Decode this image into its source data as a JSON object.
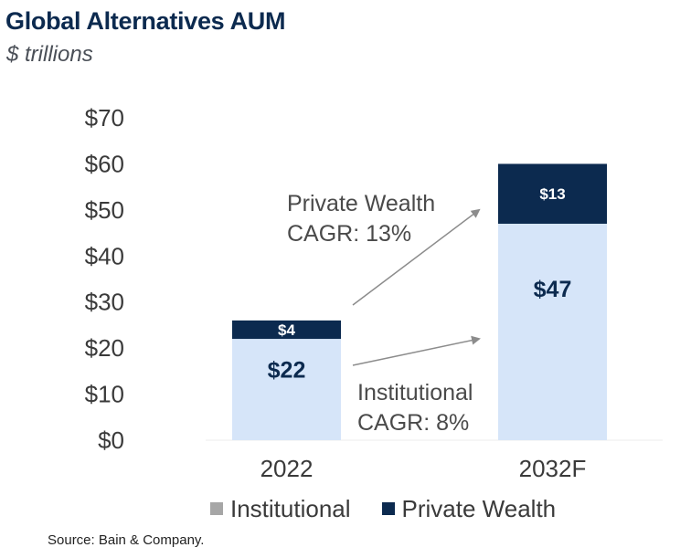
{
  "title": "Global Alternatives AUM",
  "subtitle": "$ trillions",
  "source": "Source: Bain & Company.",
  "colors": {
    "institutional": "#d6e5f9",
    "private_wealth": "#0c2a4f",
    "legend_institutional": "#a6a6a6",
    "arrow": "#8c8c8c"
  },
  "chart_data": {
    "type": "bar",
    "stacked": true,
    "categories": [
      "2022",
      "2032F"
    ],
    "series": [
      {
        "name": "Institutional",
        "values": [
          22,
          47
        ],
        "labels": [
          "$22",
          "$47"
        ]
      },
      {
        "name": "Private Wealth",
        "values": [
          4,
          13
        ],
        "labels": [
          "$4",
          "$13"
        ]
      }
    ],
    "ylim": [
      0,
      70
    ],
    "yticks": [
      0,
      10,
      20,
      30,
      40,
      50,
      60,
      70
    ],
    "ytick_labels": [
      "$0",
      "$10",
      "$20",
      "$30",
      "$40",
      "$50",
      "$60",
      "$70"
    ],
    "grid": false,
    "legend": "bottom",
    "annotations": [
      {
        "series": "Private Wealth",
        "lines": [
          "Private Wealth",
          "CAGR: 13%"
        ]
      },
      {
        "series": "Institutional",
        "lines": [
          "Institutional",
          "CAGR: 8%"
        ]
      }
    ]
  }
}
